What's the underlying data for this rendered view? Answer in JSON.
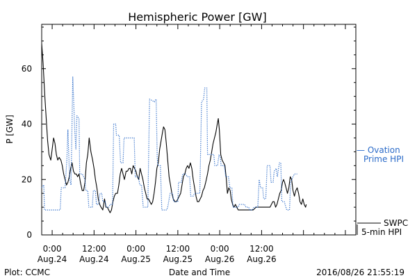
{
  "chart_data": {
    "type": "line",
    "title": "Hemispheric Power [GW]",
    "xlabel": "Date and Time",
    "ylabel": "P [GW]",
    "ylim": [
      0,
      76
    ],
    "ytick_values": [
      0,
      20,
      40,
      60
    ],
    "xlim": [
      -3,
      87
    ],
    "x_unit": "hours since 2016-08-24 00:00 UT",
    "xticks": [
      {
        "x": 0,
        "time": "0:00",
        "date": "Aug.24"
      },
      {
        "x": 12,
        "time": "12:00",
        "date": "Aug.24"
      },
      {
        "x": 24,
        "time": "0:00",
        "date": "Aug.25"
      },
      {
        "x": 36,
        "time": "12:00",
        "date": "Aug.25"
      },
      {
        "x": 48,
        "time": "0:00",
        "date": "Aug.26"
      },
      {
        "x": 60,
        "time": "12:00",
        "date": "Aug.26"
      }
    ],
    "grid": false,
    "series": [
      {
        "name": "SWPC 5-min HPI",
        "legend_lines": [
          "SWPC",
          "5-min HPI"
        ],
        "color": "#000000",
        "style": "solid",
        "points": [
          [
            -3,
            69
          ],
          [
            -2.6,
            62
          ],
          [
            -2.1,
            50
          ],
          [
            -1.7,
            42
          ],
          [
            -1.3,
            34
          ],
          [
            -0.9,
            29
          ],
          [
            -0.4,
            27
          ],
          [
            0,
            31
          ],
          [
            0.4,
            35
          ],
          [
            0.8,
            33
          ],
          [
            1.2,
            29
          ],
          [
            1.6,
            27
          ],
          [
            2,
            28
          ],
          [
            2.5,
            27
          ],
          [
            2.9,
            25
          ],
          [
            3.3,
            22
          ],
          [
            3.7,
            20
          ],
          [
            4.1,
            18
          ],
          [
            4.5,
            19
          ],
          [
            4.9,
            21
          ],
          [
            5.3,
            24
          ],
          [
            5.7,
            26
          ],
          [
            6.1,
            23
          ],
          [
            6.5,
            22
          ],
          [
            6.9,
            22
          ],
          [
            7.3,
            21
          ],
          [
            7.7,
            22
          ],
          [
            8.1,
            19
          ],
          [
            8.6,
            16
          ],
          [
            9,
            16
          ],
          [
            9.4,
            19
          ],
          [
            9.8,
            26
          ],
          [
            10.2,
            29
          ],
          [
            10.6,
            35
          ],
          [
            11.1,
            30
          ],
          [
            11.6,
            27
          ],
          [
            12,
            24
          ],
          [
            12.4,
            20
          ],
          [
            12.8,
            17
          ],
          [
            13.2,
            13
          ],
          [
            13.6,
            11
          ],
          [
            14,
            10
          ],
          [
            14.5,
            9
          ],
          [
            15,
            13
          ],
          [
            15.4,
            10
          ],
          [
            15.8,
            10
          ],
          [
            16.2,
            9
          ],
          [
            16.6,
            8
          ],
          [
            17,
            9
          ],
          [
            17.4,
            12
          ],
          [
            17.8,
            14
          ],
          [
            18.2,
            15
          ],
          [
            18.7,
            15
          ],
          [
            19.1,
            18
          ],
          [
            19.5,
            22
          ],
          [
            19.9,
            24
          ],
          [
            20.3,
            22
          ],
          [
            20.7,
            20
          ],
          [
            21.2,
            23
          ],
          [
            21.6,
            23
          ],
          [
            22,
            24
          ],
          [
            22.4,
            24
          ],
          [
            22.8,
            22
          ],
          [
            23.2,
            25
          ],
          [
            23.6,
            24
          ],
          [
            24,
            23
          ],
          [
            24.4,
            21
          ],
          [
            24.8,
            20
          ],
          [
            25.2,
            24
          ],
          [
            25.6,
            22
          ],
          [
            26,
            20
          ],
          [
            26.4,
            17
          ],
          [
            26.8,
            15
          ],
          [
            27.2,
            13
          ],
          [
            27.6,
            13
          ],
          [
            28,
            12
          ],
          [
            28.4,
            11
          ],
          [
            28.8,
            12
          ],
          [
            29.2,
            15
          ],
          [
            29.6,
            19
          ],
          [
            30,
            24
          ],
          [
            30.4,
            26
          ],
          [
            30.8,
            31
          ],
          [
            31.2,
            34
          ],
          [
            31.6,
            37
          ],
          [
            31.9,
            39
          ],
          [
            32.3,
            38
          ],
          [
            32.7,
            33
          ],
          [
            33.1,
            27
          ],
          [
            33.5,
            21
          ],
          [
            33.9,
            18
          ],
          [
            34.3,
            15
          ],
          [
            34.7,
            13
          ],
          [
            35.2,
            12
          ],
          [
            35.6,
            12
          ],
          [
            36,
            13
          ],
          [
            36.4,
            14
          ],
          [
            36.8,
            15
          ],
          [
            37.2,
            18
          ],
          [
            37.6,
            21
          ],
          [
            38,
            22
          ],
          [
            38.4,
            24
          ],
          [
            38.8,
            25
          ],
          [
            39.2,
            24
          ],
          [
            39.6,
            26
          ],
          [
            40,
            24
          ],
          [
            40.4,
            20
          ],
          [
            40.8,
            17
          ],
          [
            41.2,
            14
          ],
          [
            41.6,
            12
          ],
          [
            42,
            12
          ],
          [
            42.4,
            13
          ],
          [
            42.8,
            14
          ],
          [
            43.2,
            16
          ],
          [
            43.6,
            17
          ],
          [
            44,
            19
          ],
          [
            44.5,
            22
          ],
          [
            44.9,
            25
          ],
          [
            45.3,
            27
          ],
          [
            45.7,
            30
          ],
          [
            46.1,
            33
          ],
          [
            46.5,
            35
          ],
          [
            46.9,
            37
          ],
          [
            47.3,
            40
          ],
          [
            47.6,
            42
          ],
          [
            47.9,
            38
          ],
          [
            48.3,
            29
          ],
          [
            48.7,
            27
          ],
          [
            49.1,
            26
          ],
          [
            49.5,
            25
          ],
          [
            49.9,
            20
          ],
          [
            50.2,
            15
          ],
          [
            50.6,
            17
          ],
          [
            51,
            16
          ],
          [
            51.3,
            13
          ],
          [
            51.7,
            11
          ],
          [
            52.1,
            10
          ],
          [
            52.5,
            11
          ],
          [
            52.9,
            10
          ],
          [
            53.3,
            9
          ],
          [
            53.7,
            9
          ],
          [
            54.1,
            9
          ],
          [
            54.6,
            9
          ],
          [
            55,
            9
          ],
          [
            55.4,
            9
          ],
          [
            56,
            9
          ],
          [
            56.8,
            9
          ],
          [
            57.6,
            9
          ],
          [
            58.4,
            10
          ],
          [
            59.2,
            10
          ],
          [
            60,
            10
          ],
          [
            60.8,
            10
          ],
          [
            61.6,
            10
          ],
          [
            62.4,
            10
          ],
          [
            63.2,
            12
          ],
          [
            63.6,
            12
          ],
          [
            64,
            10
          ],
          [
            64.4,
            11
          ],
          [
            64.8,
            13
          ],
          [
            65.2,
            15
          ],
          [
            65.6,
            16
          ],
          [
            66,
            19
          ],
          [
            66.3,
            20
          ],
          [
            66.6,
            19
          ],
          [
            67,
            17
          ],
          [
            67.4,
            15
          ],
          [
            67.8,
            17
          ],
          [
            68.2,
            21
          ],
          [
            68.6,
            20
          ],
          [
            69,
            16
          ],
          [
            69.4,
            14
          ],
          [
            69.8,
            16
          ],
          [
            70.2,
            17
          ],
          [
            70.6,
            15
          ],
          [
            71,
            12
          ],
          [
            71.4,
            11
          ],
          [
            71.8,
            13
          ],
          [
            72.2,
            11
          ],
          [
            72.6,
            10
          ],
          [
            72.8,
            11
          ]
        ]
      },
      {
        "name": "Ovation Prime HPI",
        "legend_lines": [
          "— Ovation",
          "Prime HPI"
        ],
        "color": "#2a6ac8",
        "style": "dotted",
        "points": [
          [
            -3,
            17
          ],
          [
            -2.4,
            18
          ],
          [
            -2.2,
            9
          ],
          [
            0,
            9
          ],
          [
            2.3,
            9
          ],
          [
            2.6,
            17
          ],
          [
            3.7,
            17
          ],
          [
            4.2,
            27
          ],
          [
            4.5,
            38
          ],
          [
            5,
            20
          ],
          [
            5.4,
            18
          ],
          [
            5.9,
            57
          ],
          [
            6.5,
            37
          ],
          [
            6.8,
            31
          ],
          [
            7.1,
            43
          ],
          [
            7.7,
            42
          ],
          [
            7.9,
            22
          ],
          [
            8.6,
            22
          ],
          [
            9.4,
            20
          ],
          [
            9.6,
            16
          ],
          [
            10.2,
            16
          ],
          [
            10.5,
            10
          ],
          [
            11.5,
            10
          ],
          [
            11.8,
            16
          ],
          [
            12.4,
            16
          ],
          [
            12.7,
            11
          ],
          [
            13.3,
            11
          ],
          [
            13.7,
            15
          ],
          [
            14.2,
            15
          ],
          [
            14.5,
            12
          ],
          [
            15.2,
            12
          ],
          [
            15.5,
            10
          ],
          [
            16.2,
            10
          ],
          [
            16.6,
            11
          ],
          [
            17.3,
            11
          ],
          [
            17.6,
            40
          ],
          [
            18.2,
            40
          ],
          [
            18.4,
            36
          ],
          [
            19.2,
            36
          ],
          [
            19.6,
            26
          ],
          [
            20.3,
            26
          ],
          [
            20.6,
            35
          ],
          [
            22.4,
            35
          ],
          [
            22.8,
            35
          ],
          [
            23.5,
            35
          ],
          [
            23.8,
            21
          ],
          [
            24.7,
            21
          ],
          [
            25.1,
            18
          ],
          [
            25.6,
            18
          ],
          [
            26.1,
            10
          ],
          [
            27,
            10
          ],
          [
            27.4,
            10
          ],
          [
            27.9,
            49
          ],
          [
            29.3,
            48
          ],
          [
            29.8,
            49
          ],
          [
            30.1,
            28
          ],
          [
            30.3,
            25
          ],
          [
            31,
            25
          ],
          [
            31.4,
            9
          ],
          [
            32.8,
            9
          ],
          [
            33.1,
            10
          ],
          [
            33.8,
            15
          ],
          [
            34.5,
            15
          ],
          [
            34.8,
            12
          ],
          [
            36,
            12
          ],
          [
            36.2,
            19
          ],
          [
            37,
            19
          ],
          [
            37.4,
            22
          ],
          [
            38.2,
            22
          ],
          [
            38.7,
            21
          ],
          [
            39.4,
            21
          ],
          [
            39.7,
            14
          ],
          [
            40.4,
            14
          ],
          [
            40.8,
            15
          ],
          [
            42.3,
            15
          ],
          [
            42.8,
            48
          ],
          [
            43.4,
            49
          ],
          [
            43.7,
            53
          ],
          [
            44.3,
            53
          ],
          [
            44.5,
            29
          ],
          [
            46.3,
            29
          ],
          [
            46.6,
            25
          ],
          [
            47.4,
            25
          ],
          [
            47.8,
            29
          ],
          [
            48.2,
            28
          ],
          [
            48.4,
            25
          ],
          [
            49.3,
            25
          ],
          [
            49.7,
            21
          ],
          [
            50.5,
            21
          ],
          [
            50.9,
            17
          ],
          [
            51.5,
            17
          ],
          [
            51.8,
            10
          ],
          [
            53.3,
            10
          ],
          [
            53.6,
            11
          ],
          [
            55.1,
            11
          ],
          [
            55.5,
            10
          ],
          [
            56.3,
            10
          ],
          [
            56.6,
            9
          ],
          [
            57.4,
            9
          ],
          [
            57.8,
            10
          ],
          [
            58.9,
            10
          ],
          [
            59.3,
            20
          ],
          [
            59.7,
            17
          ],
          [
            60.3,
            17
          ],
          [
            60.6,
            13
          ],
          [
            61.2,
            13
          ],
          [
            61.6,
            25
          ],
          [
            62.4,
            25
          ],
          [
            62.7,
            19
          ],
          [
            63.3,
            19
          ],
          [
            63.6,
            23
          ],
          [
            64.2,
            24
          ],
          [
            64.5,
            21
          ],
          [
            65.1,
            26
          ],
          [
            65.5,
            26
          ],
          [
            65.8,
            12
          ],
          [
            66.3,
            12
          ],
          [
            66.5,
            12
          ],
          [
            67.2,
            9
          ],
          [
            68,
            9
          ],
          [
            68.3,
            19
          ],
          [
            69,
            21
          ],
          [
            69.4,
            22
          ],
          [
            70.2,
            22
          ]
        ]
      }
    ],
    "annotations": [
      {
        "text": "Plot: CCMC",
        "position": "bottom-left"
      },
      {
        "text": "2016/08/26 21:55:19",
        "position": "bottom-right"
      }
    ]
  }
}
